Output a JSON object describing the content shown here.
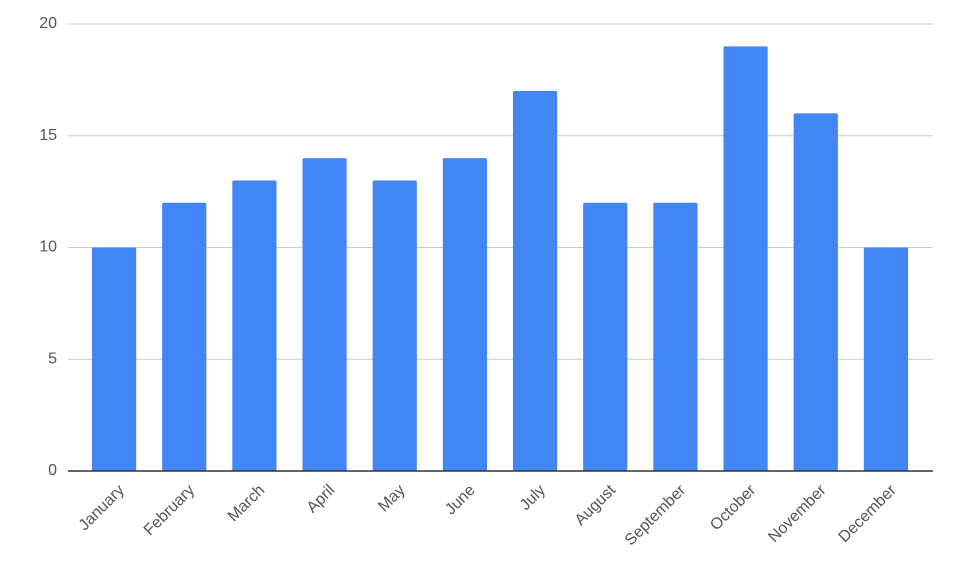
{
  "chart_data": {
    "type": "bar",
    "categories": [
      "January",
      "February",
      "March",
      "April",
      "May",
      "June",
      "July",
      "August",
      "September",
      "October",
      "November",
      "December"
    ],
    "values": [
      10,
      12,
      13,
      14,
      13,
      14,
      17,
      12,
      12,
      19,
      16,
      10
    ],
    "color": "#4285f4",
    "ylim": [
      0,
      20
    ],
    "yticks": [
      0,
      5,
      10,
      15,
      20
    ],
    "grid": true
  }
}
